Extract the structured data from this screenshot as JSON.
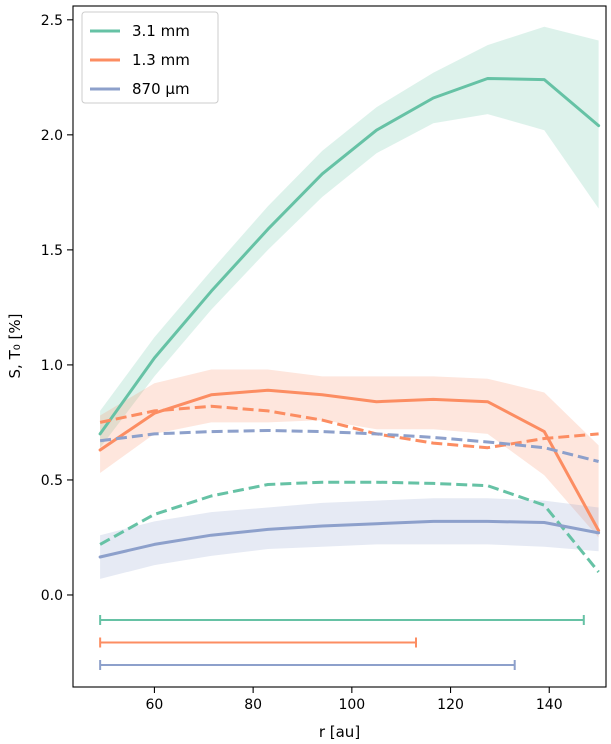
{
  "chart_data": {
    "type": "line",
    "xlabel": "r [au]",
    "ylabel": "S, T₀ [%]",
    "xlim": [
      43.5,
      151.5
    ],
    "ylim": [
      -0.4,
      2.56
    ],
    "xticks": [
      60,
      80,
      100,
      120,
      140
    ],
    "yticks": [
      0.0,
      0.5,
      1.0,
      1.5,
      2.0,
      2.5
    ],
    "legend_position": "upper-left",
    "grid": false,
    "x": [
      49,
      60,
      71.5,
      83,
      94,
      105,
      116.5,
      127.5,
      139,
      150
    ],
    "series": [
      {
        "name": "3.1 mm",
        "color": "#66c2a5",
        "S": [
          0.7,
          1.03,
          1.32,
          1.59,
          1.83,
          2.02,
          2.16,
          2.245,
          2.24,
          2.04
        ],
        "S_lower": [
          0.64,
          0.95,
          1.24,
          1.5,
          1.73,
          1.92,
          2.05,
          2.09,
          2.02,
          1.68
        ],
        "S_upper": [
          0.8,
          1.12,
          1.41,
          1.69,
          1.93,
          2.12,
          2.27,
          2.39,
          2.47,
          2.41
        ],
        "T0": [
          0.22,
          0.35,
          0.43,
          0.48,
          0.49,
          0.49,
          0.485,
          0.475,
          0.39,
          0.1
        ],
        "range": [
          49,
          147
        ]
      },
      {
        "name": "1.3 mm",
        "color": "#fc8d62",
        "S": [
          0.63,
          0.79,
          0.87,
          0.89,
          0.87,
          0.84,
          0.85,
          0.84,
          0.71,
          0.28
        ],
        "S_lower": [
          0.53,
          0.7,
          0.75,
          0.75,
          0.76,
          0.72,
          0.72,
          0.7,
          0.52,
          0.25
        ],
        "S_upper": [
          0.78,
          0.92,
          0.98,
          0.98,
          0.95,
          0.95,
          0.95,
          0.94,
          0.88,
          0.65
        ],
        "T0": [
          0.75,
          0.8,
          0.82,
          0.8,
          0.76,
          0.7,
          0.66,
          0.64,
          0.68,
          0.7
        ],
        "range": [
          49,
          113
        ]
      },
      {
        "name": "870 μm",
        "color": "#8da0cb",
        "S": [
          0.165,
          0.22,
          0.26,
          0.285,
          0.3,
          0.31,
          0.32,
          0.32,
          0.315,
          0.27
        ],
        "S_lower": [
          0.07,
          0.13,
          0.17,
          0.2,
          0.21,
          0.22,
          0.22,
          0.22,
          0.21,
          0.19
        ],
        "S_upper": [
          0.26,
          0.32,
          0.36,
          0.38,
          0.4,
          0.41,
          0.42,
          0.42,
          0.41,
          0.38
        ],
        "T0": [
          0.67,
          0.7,
          0.71,
          0.715,
          0.71,
          0.7,
          0.685,
          0.665,
          0.64,
          0.58
        ],
        "range": [
          49,
          133
        ]
      }
    ]
  }
}
